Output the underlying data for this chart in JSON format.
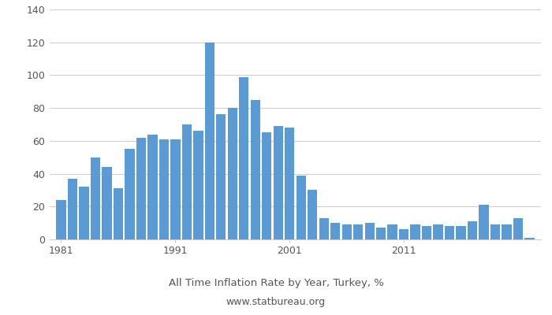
{
  "years": [
    1981,
    1982,
    1983,
    1984,
    1985,
    1986,
    1987,
    1988,
    1989,
    1990,
    1991,
    1992,
    1993,
    1994,
    1995,
    1996,
    1997,
    1998,
    1999,
    2000,
    2001,
    2002,
    2003,
    2004,
    2005,
    2006,
    2007,
    2008,
    2009,
    2010,
    2011,
    2012,
    2013,
    2014,
    2015,
    2016,
    2017,
    2018,
    2019,
    2020,
    2021,
    2022
  ],
  "values": [
    24,
    37,
    32,
    50,
    44,
    31,
    55,
    62,
    64,
    61,
    61,
    70,
    66,
    120,
    76,
    80,
    99,
    85,
    65,
    69,
    68,
    39,
    30,
    13,
    10,
    9,
    9,
    10,
    7,
    9,
    6,
    9,
    8,
    9,
    8,
    8,
    11,
    21,
    9,
    9,
    13,
    1
  ],
  "bar_color": "#5b9bd5",
  "title": "All Time Inflation Rate by Year, Turkey, %",
  "subtitle": "www.statbureau.org",
  "title_color": "#555555",
  "bg_color": "#ffffff",
  "grid_color": "#cccccc",
  "ylim": [
    0,
    140
  ],
  "yticks": [
    0,
    20,
    40,
    60,
    80,
    100,
    120,
    140
  ],
  "xtick_positions": [
    1981,
    1991,
    2001,
    2011
  ],
  "xtick_labels": [
    "1981",
    "1991",
    "2001",
    "2011"
  ],
  "xlim": [
    1980.0,
    2023.0
  ]
}
